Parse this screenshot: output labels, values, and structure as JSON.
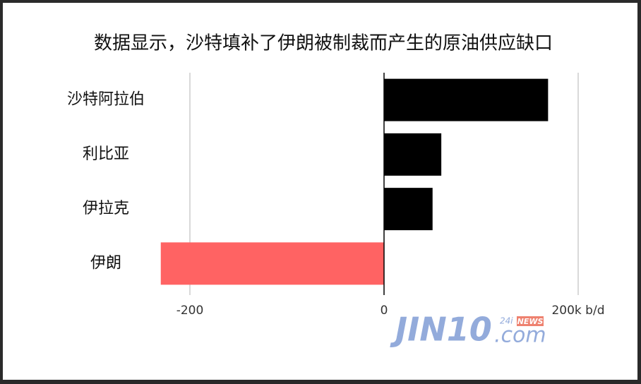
{
  "chart_data": {
    "type": "bar",
    "orientation": "horizontal",
    "title": "数据显示，沙特填补了伊朗被制裁而产生的原油供应缺口",
    "categories": [
      "沙特阿拉伯",
      "利比亚",
      "伊拉克",
      "伊朗"
    ],
    "values": [
      169,
      59,
      50,
      -230
    ],
    "colors": [
      "#000000",
      "#000000",
      "#000000",
      "#ff6363"
    ],
    "xlim": [
      -240,
      200
    ],
    "xticks": [
      -200,
      0,
      {
        "value": 200,
        "label": "200k b/d"
      }
    ],
    "grid": true
  },
  "watermark": {
    "brand": "JIN10",
    "domain": ".com",
    "prefix": "24i",
    "tag": "NEWS"
  }
}
